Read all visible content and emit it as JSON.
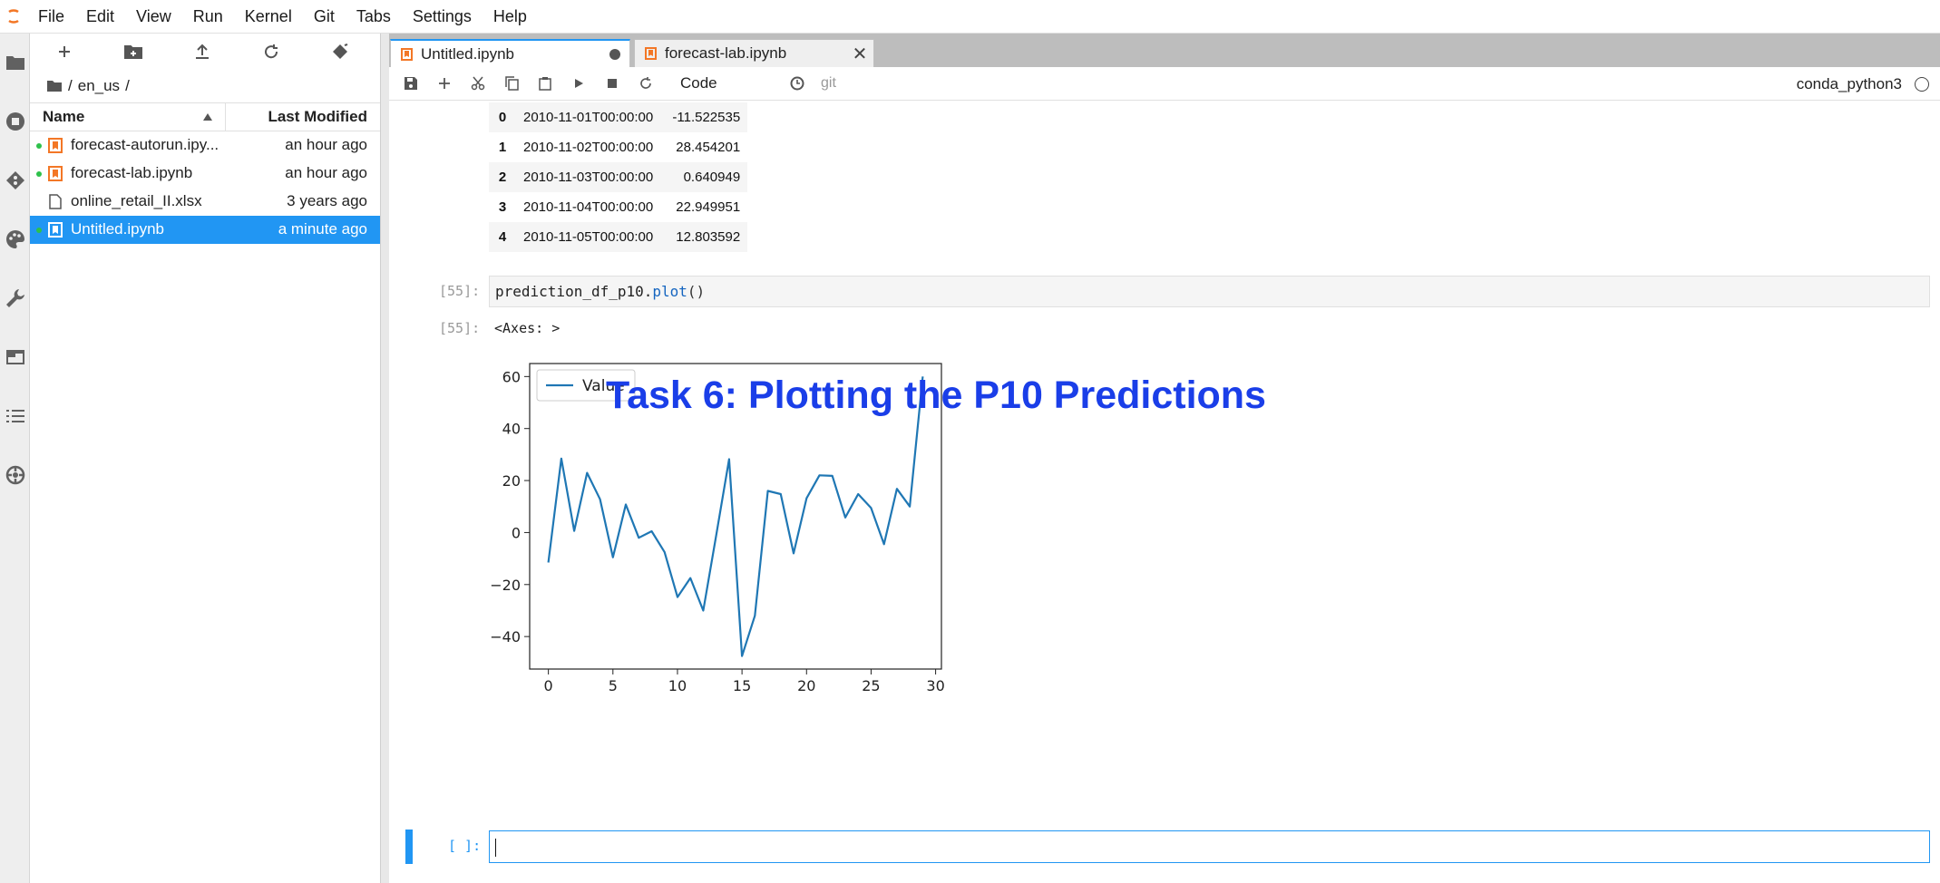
{
  "menubar": {
    "items": [
      "File",
      "Edit",
      "View",
      "Run",
      "Kernel",
      "Git",
      "Tabs",
      "Settings",
      "Help"
    ]
  },
  "file_browser": {
    "breadcrumb": [
      "en_us"
    ],
    "breadcrumb_sep": "/",
    "columns": {
      "name": "Name",
      "modified": "Last Modified"
    },
    "files": [
      {
        "name": "forecast-autorun.ipy...",
        "modified": "an hour ago",
        "running": true,
        "type": "notebook"
      },
      {
        "name": "forecast-lab.ipynb",
        "modified": "an hour ago",
        "running": true,
        "type": "notebook"
      },
      {
        "name": "online_retail_II.xlsx",
        "modified": "3 years ago",
        "running": false,
        "type": "file"
      },
      {
        "name": "Untitled.ipynb",
        "modified": "a minute ago",
        "running": true,
        "type": "notebook",
        "selected": true
      }
    ]
  },
  "tabs": [
    {
      "label": "Untitled.ipynb",
      "active": true,
      "modified": true
    },
    {
      "label": "forecast-lab.ipynb",
      "active": false,
      "modified": false
    }
  ],
  "toolbar": {
    "cell_type": "Code",
    "git_label": "git",
    "kernel": "conda_python3"
  },
  "dataframe": {
    "rows": [
      {
        "index": "0",
        "date": "2010-11-01T00:00:00",
        "value": "-11.522535"
      },
      {
        "index": "1",
        "date": "2010-11-02T00:00:00",
        "value": "28.454201"
      },
      {
        "index": "2",
        "date": "2010-11-03T00:00:00",
        "value": "0.640949"
      },
      {
        "index": "3",
        "date": "2010-11-04T00:00:00",
        "value": "22.949951"
      },
      {
        "index": "4",
        "date": "2010-11-05T00:00:00",
        "value": "12.803592"
      }
    ]
  },
  "cells": {
    "code_prompt": "[55]:",
    "code_var": "prediction_df_p10.",
    "code_method": "plot",
    "code_parens": "()",
    "output_prompt": "[55]:",
    "output_text": "<Axes: >",
    "empty_prompt": "[ ]:"
  },
  "overlay_title": "Task 6: Plotting the P10 Predictions",
  "colors": {
    "accent": "#2196f3",
    "line": "#1f77b4",
    "overlay_title": "#1a3ee8",
    "running_dot": "#2ec14b",
    "notebook_icon": "#f37726"
  },
  "chart_data": {
    "type": "line",
    "series": [
      {
        "name": "Value",
        "x": [
          0,
          1,
          2,
          3,
          4,
          5,
          6,
          7,
          8,
          9,
          10,
          11,
          12,
          13,
          14,
          15,
          16,
          17,
          18,
          19,
          20,
          21,
          22,
          23,
          24,
          25,
          26,
          27,
          28,
          29
        ],
        "values": [
          -11.52,
          28.45,
          0.64,
          22.95,
          12.8,
          -9.5,
          10.8,
          -2.0,
          0.5,
          -7.5,
          -24.8,
          -17.5,
          -30.0,
          -1.0,
          28.2,
          -47.5,
          -32.0,
          16.0,
          14.8,
          -8.0,
          13.2,
          22.0,
          21.8,
          5.8,
          14.8,
          9.5,
          -4.5,
          16.8,
          10.0,
          60.0
        ]
      }
    ],
    "xlim": [
      -1.45,
      30.45
    ],
    "ylim": [
      -52.5,
      65.0
    ],
    "xticks": [
      0,
      5,
      10,
      15,
      20,
      25,
      30
    ],
    "yticks": [
      -40,
      -20,
      0,
      20,
      40,
      60
    ],
    "legend": "upper-left",
    "grid": false
  }
}
